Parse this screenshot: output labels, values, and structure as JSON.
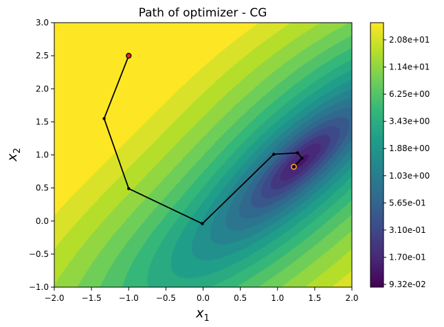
{
  "chart_data": {
    "type": "contour",
    "title": "Path of optimizer - CG",
    "xlabel_base": "x",
    "xlabel_sub": "1",
    "ylabel_base": "x",
    "ylabel_sub": "2",
    "xlim": [
      -2.0,
      2.0
    ],
    "ylim": [
      -1.0,
      3.0
    ],
    "xticks": [
      -2.0,
      -1.5,
      -1.0,
      -0.5,
      0.0,
      0.5,
      1.0,
      1.5,
      2.0
    ],
    "xtick_labels": [
      "−2.0",
      "−1.5",
      "−1.0",
      "−0.5",
      "0.0",
      "0.5",
      "1.0",
      "1.5",
      "2.0"
    ],
    "yticks": [
      -1.0,
      -0.5,
      0.0,
      0.5,
      1.0,
      1.5,
      2.0,
      2.5,
      3.0
    ],
    "ytick_labels": [
      "−1.0",
      "−0.5",
      "0.0",
      "0.5",
      "1.0",
      "1.5",
      "2.0",
      "2.5",
      "3.0"
    ],
    "colorbar_labels": [
      "9.32e-02",
      "1.70e-01",
      "3.10e-01",
      "5.65e-01",
      "1.03e+00",
      "1.88e+00",
      "3.43e+00",
      "6.25e+00",
      "1.14e+01",
      "2.08e+01"
    ],
    "colormap": "viridis",
    "path": [
      {
        "x": -1.0,
        "y": 2.5
      },
      {
        "x": -1.33,
        "y": 1.55
      },
      {
        "x": -1.0,
        "y": 0.49
      },
      {
        "x": -0.01,
        "y": -0.04
      },
      {
        "x": 0.95,
        "y": 1.01
      },
      {
        "x": 1.27,
        "y": 1.03
      },
      {
        "x": 1.33,
        "y": 0.95
      },
      {
        "x": 1.22,
        "y": 0.82
      }
    ],
    "start_point": {
      "x": -1.0,
      "y": 2.5
    },
    "end_point": {
      "x": 1.22,
      "y": 0.82
    },
    "path_color": "#000000",
    "start_color": "#d62728",
    "end_color": "#ff9f1c"
  }
}
